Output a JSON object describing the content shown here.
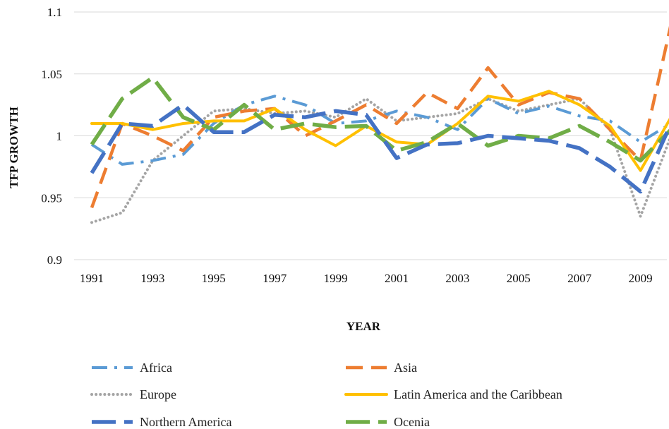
{
  "chart_data": {
    "type": "line",
    "title": "",
    "xlabel": "YEAR",
    "ylabel": "TFP GROWTH",
    "ylim": [
      0.9,
      1.1
    ],
    "yticks": [
      "0.9",
      "0.95",
      "1",
      "1.05",
      "1.1"
    ],
    "xtick_labels": [
      "1991",
      "1993",
      "1995",
      "1997",
      "1999",
      "2001",
      "2003",
      "2005",
      "2007",
      "2009"
    ],
    "grid": "horizontal",
    "legend_position": "bottom",
    "x": [
      1991,
      1992,
      1993,
      1994,
      1995,
      1996,
      1997,
      1998,
      1999,
      2000,
      2001,
      2002,
      2003,
      2004,
      2005,
      2006,
      2007,
      2008,
      2009,
      2010
    ],
    "series": [
      {
        "name": "Africa",
        "color": "#5B9BD5",
        "dash": "dash-dot",
        "values": [
          0.993,
          0.977,
          0.98,
          0.985,
          1.01,
          1.025,
          1.032,
          1.025,
          1.01,
          1.012,
          1.02,
          1.015,
          1.005,
          1.03,
          1.018,
          1.024,
          1.016,
          1.012,
          0.995,
          1.01
        ]
      },
      {
        "name": "Asia",
        "color": "#ED7D31",
        "dash": "long-dash",
        "values": [
          0.942,
          1.01,
          1.0,
          0.988,
          1.015,
          1.02,
          1.022,
          1.0,
          1.012,
          1.025,
          1.01,
          1.035,
          1.022,
          1.055,
          1.025,
          1.035,
          1.03,
          1.005,
          0.98,
          1.09
        ]
      },
      {
        "name": "Europe",
        "color": "#A5A5A5",
        "dash": "dotted",
        "values": [
          0.93,
          0.938,
          0.98,
          1.0,
          1.02,
          1.022,
          1.018,
          1.02,
          1.015,
          1.03,
          1.012,
          1.015,
          1.018,
          1.03,
          1.02,
          1.025,
          1.03,
          1.005,
          0.935,
          1.0
        ]
      },
      {
        "name": "Latin America and the Caribbean",
        "color": "#FFC000",
        "dash": "solid",
        "values": [
          1.01,
          1.01,
          1.005,
          1.01,
          1.012,
          1.012,
          1.022,
          1.005,
          0.992,
          1.008,
          0.995,
          0.993,
          1.01,
          1.032,
          1.028,
          1.036,
          1.025,
          1.008,
          0.972,
          1.015
        ]
      },
      {
        "name": "Northern America",
        "color": "#4472C4",
        "dash": "long-dash-heavy",
        "values": [
          0.97,
          1.01,
          1.008,
          1.025,
          1.003,
          1.003,
          1.017,
          1.015,
          1.02,
          1.017,
          0.982,
          0.993,
          0.994,
          1.0,
          0.998,
          0.996,
          0.99,
          0.975,
          0.955,
          1.01
        ]
      },
      {
        "name": "Ocenia",
        "color": "#70AD47",
        "dash": "long-dash-heavy",
        "values": [
          0.993,
          1.03,
          1.047,
          1.015,
          1.005,
          1.025,
          1.005,
          1.01,
          1.007,
          1.008,
          0.988,
          0.995,
          1.01,
          0.992,
          1.0,
          0.998,
          1.008,
          0.995,
          0.98,
          1.005
        ]
      }
    ]
  }
}
